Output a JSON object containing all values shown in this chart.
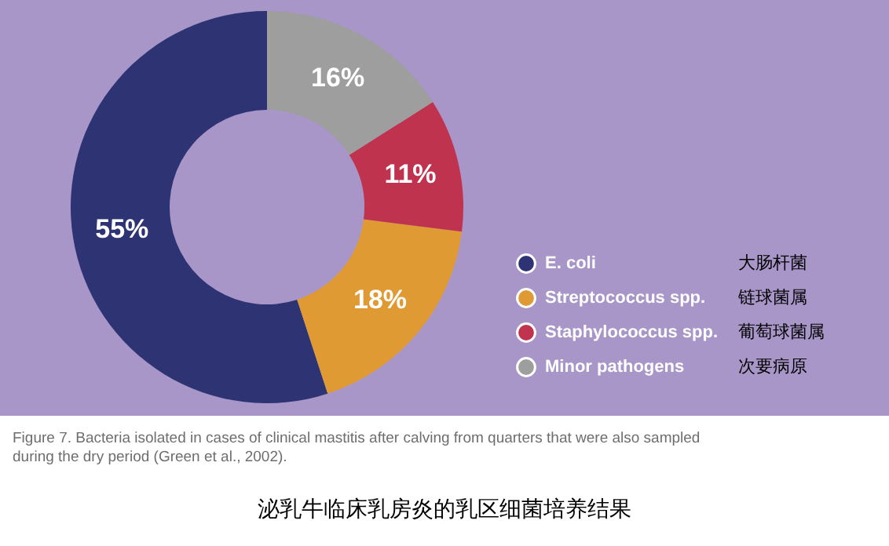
{
  "chart_data": {
    "type": "donut",
    "title": "泌乳牛临床乳房炎的乳区细菌培养结果",
    "categories": [
      "E. coli",
      "Streptococcus spp.",
      "Staphylococcus spp.",
      "Minor pathogens"
    ],
    "values": [
      55,
      18,
      11,
      16
    ],
    "colors": [
      "#2e3374",
      "#e09a34",
      "#c0334f",
      "#9e9e9e"
    ],
    "value_labels": [
      "55%",
      "18%",
      "11%",
      "16%"
    ],
    "legend": "right",
    "annotations": [
      "大肠杆菌",
      "链球菌属",
      "葡萄球菌属",
      "次要病原",
      "Figure 7. Bacteria isolated in cases of clinical mastitis after calving from quarters that were also sampled during the dry period (Green et al., 2002)."
    ]
  }
}
